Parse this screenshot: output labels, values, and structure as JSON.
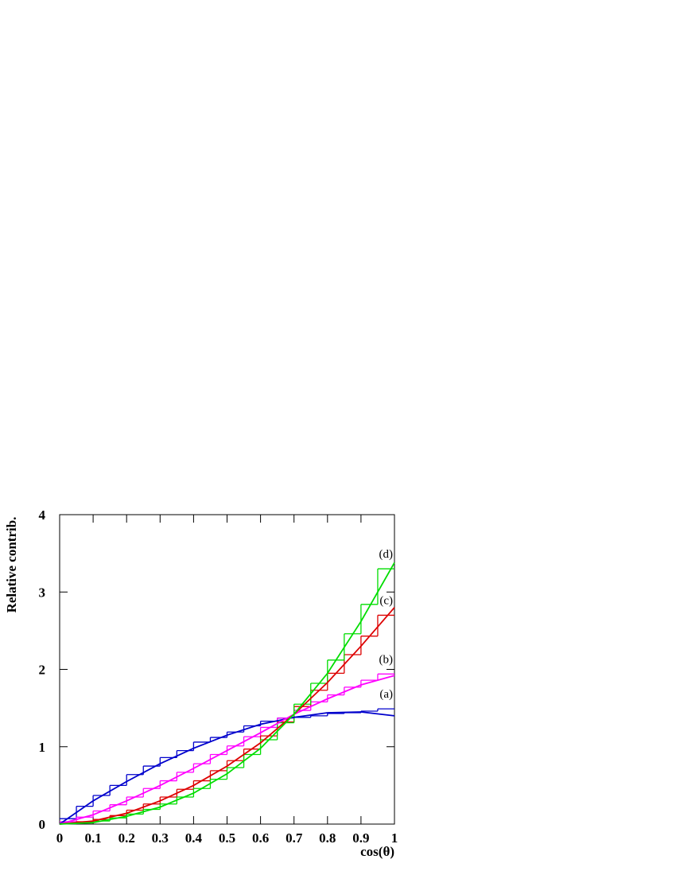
{
  "chart_data": {
    "type": "line",
    "x_label": "cos(θ)",
    "y_label": "Relative contrib.",
    "xlim": [
      0,
      1
    ],
    "ylim": [
      0,
      4
    ],
    "xticks": [
      0,
      0.1,
      0.2,
      0.3,
      0.4,
      0.5,
      0.6,
      0.7,
      0.8,
      0.9,
      1
    ],
    "yticks": [
      0,
      1,
      2,
      3,
      4
    ],
    "x": [
      0,
      0.1,
      0.2,
      0.3,
      0.4,
      0.5,
      0.6,
      0.7,
      0.8,
      0.9,
      1
    ],
    "series": [
      {
        "name": "(a)",
        "color": "#0000cc",
        "values": [
          0,
          0.3,
          0.55,
          0.78,
          0.98,
          1.15,
          1.29,
          1.38,
          1.44,
          1.45,
          1.4
        ]
      },
      {
        "name": "(b)",
        "color": "#ff00ff",
        "values": [
          0,
          0.12,
          0.3,
          0.5,
          0.72,
          0.95,
          1.18,
          1.42,
          1.62,
          1.8,
          1.92
        ]
      },
      {
        "name": "(c)",
        "color": "#dd0000",
        "values": [
          0,
          0.04,
          0.14,
          0.3,
          0.5,
          0.75,
          1.05,
          1.42,
          1.83,
          2.3,
          2.8
        ]
      },
      {
        "name": "(d)",
        "color": "#00dd00",
        "values": [
          0,
          0.02,
          0.1,
          0.22,
          0.4,
          0.65,
          0.98,
          1.42,
          1.95,
          2.62,
          3.38
        ]
      }
    ],
    "histograms": {
      "bins": [
        0,
        0.05,
        0.1,
        0.15,
        0.2,
        0.25,
        0.3,
        0.35,
        0.4,
        0.45,
        0.5,
        0.55,
        0.6,
        0.65,
        0.7,
        0.75,
        0.8,
        0.85,
        0.9,
        0.95,
        1
      ],
      "series": [
        {
          "color": "#0000cc",
          "counts": [
            0.07,
            0.23,
            0.37,
            0.5,
            0.64,
            0.75,
            0.86,
            0.95,
            1.06,
            1.12,
            1.19,
            1.27,
            1.33,
            1.37,
            1.38,
            1.4,
            1.43,
            1.44,
            1.46,
            1.49
          ]
        },
        {
          "color": "#ff00ff",
          "counts": [
            0.03,
            0.09,
            0.17,
            0.25,
            0.35,
            0.46,
            0.56,
            0.67,
            0.78,
            0.9,
            1.01,
            1.13,
            1.25,
            1.37,
            1.47,
            1.58,
            1.67,
            1.77,
            1.86,
            1.94
          ]
        },
        {
          "color": "#dd0000",
          "counts": [
            0.01,
            0.03,
            0.06,
            0.11,
            0.18,
            0.26,
            0.35,
            0.45,
            0.56,
            0.69,
            0.82,
            0.97,
            1.14,
            1.32,
            1.52,
            1.73,
            1.95,
            2.19,
            2.43,
            2.7
          ]
        },
        {
          "color": "#00dd00",
          "counts": [
            0.005,
            0.015,
            0.04,
            0.08,
            0.13,
            0.19,
            0.26,
            0.35,
            0.46,
            0.58,
            0.73,
            0.9,
            1.09,
            1.31,
            1.55,
            1.82,
            2.12,
            2.46,
            2.84,
            3.3
          ]
        }
      ]
    }
  }
}
